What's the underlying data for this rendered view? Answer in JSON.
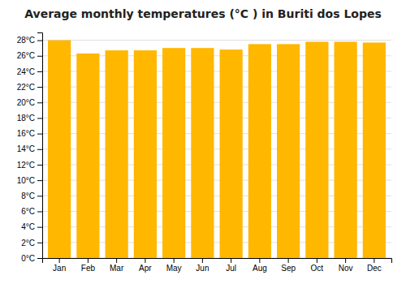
{
  "chart_data": {
    "type": "bar",
    "title": "Average monthly temperatures (°C ) in Buriti dos Lopes",
    "categories": [
      "Jan",
      "Feb",
      "Mar",
      "Apr",
      "May",
      "Jun",
      "Jul",
      "Aug",
      "Sep",
      "Oct",
      "Nov",
      "Dec"
    ],
    "values": [
      28.0,
      26.3,
      26.7,
      26.7,
      27.0,
      27.0,
      26.8,
      27.5,
      27.5,
      27.8,
      27.8,
      27.7
    ],
    "color": "#FFB700",
    "ylim": [
      0,
      29
    ],
    "yticks": [
      {
        "value": 0,
        "label": "0°C"
      },
      {
        "value": 2,
        "label": "2°C"
      },
      {
        "value": 4,
        "label": "4°C"
      },
      {
        "value": 6,
        "label": "6°C"
      },
      {
        "value": 8,
        "label": "8°C"
      },
      {
        "value": 10,
        "label": "10°C"
      },
      {
        "value": 12,
        "label": "12°C"
      },
      {
        "value": 14,
        "label": "14°C"
      },
      {
        "value": 16,
        "label": "16°C"
      },
      {
        "value": 18,
        "label": "18°C"
      },
      {
        "value": 20,
        "label": "20°C"
      },
      {
        "value": 22,
        "label": "22°C"
      },
      {
        "value": 24,
        "label": "24°C"
      },
      {
        "value": 26,
        "label": "26°C"
      },
      {
        "value": 28,
        "label": "28°C"
      }
    ],
    "grid": true
  }
}
